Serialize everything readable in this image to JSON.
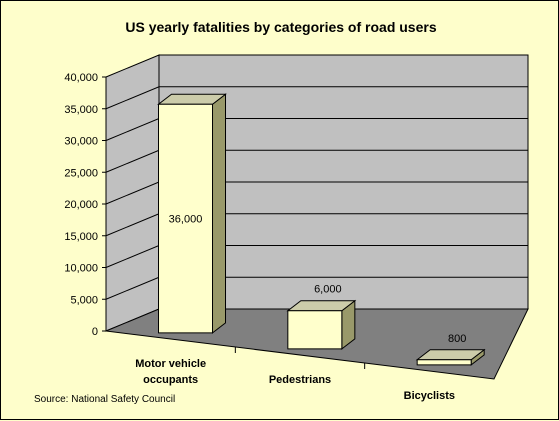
{
  "chart_data": {
    "type": "bar",
    "title": "US yearly fatalities by categories of road users",
    "categories": [
      "Motor vehicle occupants",
      "Pedestrians",
      "Bicyclists"
    ],
    "category_lines": [
      [
        "Motor vehicle",
        "occupants"
      ],
      [
        "Pedestrians"
      ],
      [
        "Bicyclists"
      ]
    ],
    "values": [
      36000,
      6000,
      800
    ],
    "data_labels": [
      "36,000",
      "6,000",
      "800"
    ],
    "ylim": [
      0,
      40000
    ],
    "yticks": [
      "0",
      "5,000",
      "10,000",
      "15,000",
      "20,000",
      "25,000",
      "30,000",
      "35,000",
      "40,000"
    ],
    "grid": true,
    "projection": "3d",
    "source": "Source:  National Safety Council",
    "colors": {
      "background": "#fefecb",
      "back_wall": "#c0c0c0",
      "floor": "#808080",
      "bar_front": "#ffffcc",
      "bar_side": "#99996a",
      "bar_top": "#ccccaa"
    }
  }
}
